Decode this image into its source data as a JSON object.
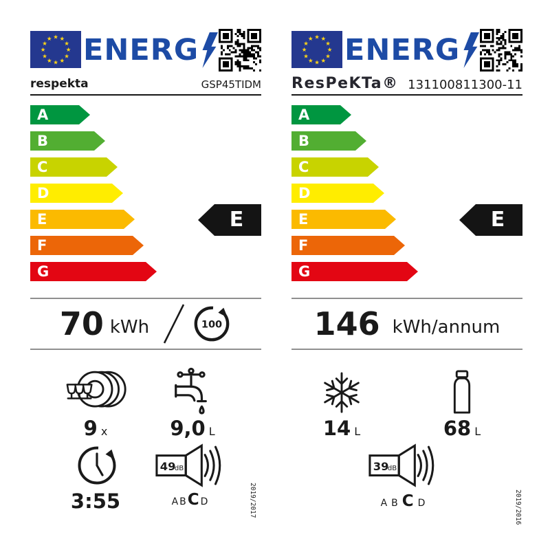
{
  "colors": {
    "flag_blue": "#24388f",
    "star_yellow": "#ffd617",
    "logo_blue": "#1d4ba5",
    "grade_colors": [
      "#009640",
      "#52ae32",
      "#c8d300",
      "#ffed00",
      "#fbba00",
      "#ec6608",
      "#e30613"
    ],
    "rating_black": "#141414",
    "divider_gray": "#8f8f8f",
    "ink": "#1a1a1a"
  },
  "scale_grades": [
    "A",
    "B",
    "C",
    "D",
    "E",
    "F",
    "G"
  ],
  "left": {
    "logo_text": "ENERG",
    "brand": "respekta",
    "model": "GSP45TIDM",
    "rating_grade": "E",
    "energy": {
      "value": "70",
      "unit": "kWh",
      "separator": "/",
      "per_cycles": "100"
    },
    "place_settings": {
      "value": "9",
      "unit": "x"
    },
    "water": {
      "value": "9,0",
      "unit": "L"
    },
    "duration": {
      "value": "3:55"
    },
    "noise": {
      "value": "49",
      "unit": "dB",
      "classes": [
        "A",
        "B",
        "C",
        "D"
      ],
      "active_class": "C"
    },
    "regulation": "2019/2017"
  },
  "right": {
    "logo_text": "ENERG",
    "brand": "ResPeKTa®",
    "model": "131100811300-11",
    "rating_grade": "E",
    "energy": {
      "value": "146",
      "unit": "kWh/annum"
    },
    "freezer": {
      "value": "14",
      "unit": "L"
    },
    "fridge": {
      "value": "68",
      "unit": "L"
    },
    "noise": {
      "value": "39",
      "unit": "dB",
      "classes": [
        "A",
        "B",
        "C",
        "D"
      ],
      "active_class": "C"
    },
    "regulation": "2019/2016"
  }
}
